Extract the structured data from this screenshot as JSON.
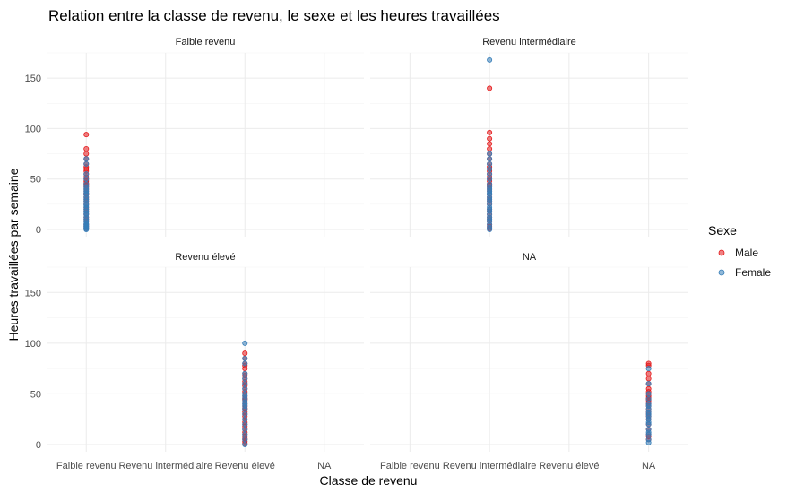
{
  "chart_data": {
    "type": "scatter",
    "title": "Relation entre la classe de revenu, le sexe et les heures travaillées",
    "xlabel": "Classe de revenu",
    "ylabel": "Heures travaillées par semaine",
    "categories": [
      "Faible revenu",
      "Revenu intermédiaire",
      "Revenu élevé",
      "NA"
    ],
    "y_ticks": [
      0,
      50,
      100,
      150
    ],
    "ylim": [
      0,
      175
    ],
    "grid": true,
    "legend": {
      "title": "Sexe",
      "position": "right",
      "entries": [
        {
          "name": "Male",
          "color": "#E41A1C"
        },
        {
          "name": "Female",
          "color": "#377EB8"
        }
      ]
    },
    "facets": [
      {
        "label": "Faible revenu",
        "points": [
          {
            "x": "Faible revenu",
            "sex": "Male",
            "y": [
              94,
              80,
              75,
              70,
              65,
              62,
              60,
              58,
              55,
              52,
              50,
              48,
              46,
              45,
              44,
              42,
              40,
              38,
              36,
              35,
              32,
              30,
              28,
              25,
              22,
              20,
              18,
              15,
              12,
              10,
              8,
              5,
              3,
              1
            ]
          },
          {
            "x": "Faible revenu",
            "sex": "Female",
            "y": [
              70,
              65,
              55,
              50,
              45,
              42,
              40,
              38,
              36,
              35,
              32,
              30,
              28,
              25,
              24,
              22,
              20,
              18,
              16,
              15,
              12,
              10,
              8,
              6,
              5,
              4,
              3,
              2,
              1,
              0
            ]
          }
        ]
      },
      {
        "label": "Revenu intermédiaire",
        "points": [
          {
            "x": "Revenu intermédiaire",
            "sex": "Male",
            "y": [
              140,
              96,
              90,
              85,
              80,
              75,
              70,
              65,
              62,
              60,
              58,
              55,
              52,
              50,
              48,
              45,
              44,
              42,
              40,
              38,
              35,
              32,
              30,
              28,
              25,
              20,
              18,
              15,
              12,
              10,
              8,
              5,
              3,
              1
            ]
          },
          {
            "x": "Revenu intermédiaire",
            "sex": "Female",
            "y": [
              168,
              75,
              70,
              65,
              60,
              55,
              50,
              45,
              42,
              40,
              38,
              36,
              35,
              32,
              30,
              28,
              25,
              22,
              20,
              18,
              15,
              12,
              10,
              8,
              5,
              2,
              0
            ]
          }
        ]
      },
      {
        "label": "Revenu élevé",
        "points": [
          {
            "x": "Revenu élevé",
            "sex": "Male",
            "y": [
              90,
              85,
              80,
              78,
              75,
              70,
              68,
              65,
              62,
              60,
              58,
              55,
              52,
              50,
              48,
              46,
              45,
              44,
              42,
              40,
              38,
              36,
              35,
              32,
              30,
              28,
              25,
              22,
              20,
              18,
              15,
              12,
              10,
              8,
              6,
              5,
              3,
              1
            ]
          },
          {
            "x": "Revenu élevé",
            "sex": "Female",
            "y": [
              100,
              85,
              80,
              70,
              65,
              60,
              55,
              50,
              48,
              45,
              42,
              40,
              38,
              35,
              30,
              25,
              20,
              15,
              10,
              5,
              0
            ]
          }
        ]
      },
      {
        "label": "NA",
        "points": [
          {
            "x": "NA",
            "sex": "Male",
            "y": [
              80,
              78,
              70,
              65,
              60,
              55,
              52,
              50,
              48,
              46,
              45,
              44,
              42,
              40,
              38,
              35,
              32,
              30,
              28,
              25,
              20,
              15,
              10,
              8,
              5
            ]
          },
          {
            "x": "NA",
            "sex": "Female",
            "y": [
              75,
              60,
              50,
              45,
              40,
              38,
              35,
              32,
              30,
              28,
              25,
              22,
              20,
              15,
              12,
              10,
              5,
              2
            ]
          }
        ]
      }
    ]
  }
}
